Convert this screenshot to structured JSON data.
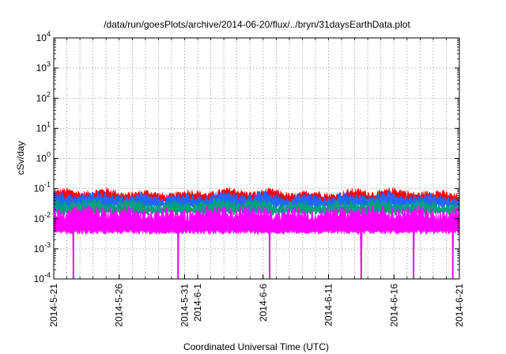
{
  "chart_data": {
    "type": "area",
    "title": "/data/run/goesPlots/archive/2014-06-20/flux/../bryn/31daysEarthData.plot",
    "xlabel": "Coordinated Universal Time (UTC)",
    "ylabel": "cSv/day",
    "yscale": "log",
    "ylim": [
      0.0001,
      10000
    ],
    "xlim": [
      "2014-05-21",
      "2014-06-21"
    ],
    "grid": true,
    "x_ticks": [
      "2014-5-21",
      "2014-5-26",
      "2014-5-31",
      "2014-6-1",
      "2014-6-6",
      "2014-6-11",
      "2014-6-16",
      "2014-6-21"
    ],
    "x_tick_dates": [
      "2014-05-21",
      "2014-05-26",
      "2014-05-31",
      "2014-06-01",
      "2014-06-06",
      "2014-06-11",
      "2014-06-16",
      "2014-06-21"
    ],
    "y_ticks": [
      {
        "base": "10",
        "exp": "-4",
        "value": 0.0001
      },
      {
        "base": "10",
        "exp": "-3",
        "value": 0.001
      },
      {
        "base": "10",
        "exp": "-2",
        "value": 0.01
      },
      {
        "base": "10",
        "exp": "-1",
        "value": 0.1
      },
      {
        "base": "10",
        "exp": "0",
        "value": 1
      },
      {
        "base": "10",
        "exp": "1",
        "value": 10
      },
      {
        "base": "10",
        "exp": "2",
        "value": 100
      },
      {
        "base": "10",
        "exp": "3",
        "value": 1000
      },
      {
        "base": "10",
        "exp": "4",
        "value": 10000
      }
    ],
    "series": [
      {
        "color": "#ff0000",
        "typical_range": [
          0.03,
          0.09
        ]
      },
      {
        "color": "#2266ff",
        "typical_range": [
          0.02,
          0.07
        ]
      },
      {
        "color": "#00a080",
        "typical_range": [
          0.012,
          0.04
        ]
      },
      {
        "color": "#ff00ff",
        "typical_range": [
          0.003,
          0.025
        ],
        "dropouts": [
          "2014-05-22",
          "2014-05-30",
          "2014-06-06",
          "2014-06-13",
          "2014-06-17",
          "2014-06-20"
        ]
      }
    ]
  }
}
